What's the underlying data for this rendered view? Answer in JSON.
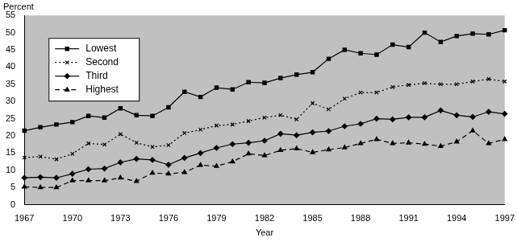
{
  "chart_data": {
    "type": "line",
    "x_label": "Year",
    "y_label": "Percent",
    "x": [
      1967,
      1968,
      1969,
      1970,
      1971,
      1972,
      1973,
      1974,
      1975,
      1976,
      1977,
      1978,
      1979,
      1980,
      1981,
      1982,
      1983,
      1984,
      1985,
      1986,
      1987,
      1988,
      1989,
      1990,
      1991,
      1992,
      1993,
      1994,
      1995,
      1996,
      1997
    ],
    "xlim": [
      1967,
      1997
    ],
    "xticks": [
      1967,
      1970,
      1973,
      1976,
      1979,
      1982,
      1985,
      1988,
      1991,
      1994,
      1997
    ],
    "ylim": [
      0,
      55
    ],
    "yticks": [
      0,
      5,
      10,
      15,
      20,
      25,
      30,
      35,
      40,
      45,
      50,
      55
    ],
    "grid": false,
    "legend": "upper left",
    "series": [
      {
        "name": "Lowest",
        "color": "#000000",
        "marker": "square",
        "line_style": "solid",
        "values": [
          21.5,
          22.5,
          23.3,
          24,
          25.8,
          25.3,
          28,
          26,
          25.8,
          28.3,
          32.8,
          31.3,
          34,
          33.5,
          35.6,
          35.4,
          36.8,
          37.8,
          38.5,
          42.4,
          45,
          44,
          43.6,
          46.5,
          45.8,
          50,
          47.3,
          49,
          49.7,
          49.5,
          50.7
        ]
      },
      {
        "name": "Second",
        "color": "#000000",
        "marker": "x",
        "line_style": "dotted",
        "values": [
          13.7,
          14,
          13.2,
          14.8,
          17.8,
          17.5,
          20.5,
          18,
          16.8,
          17.3,
          20.8,
          21.8,
          23,
          23.3,
          24.3,
          25.3,
          26,
          24.8,
          29.5,
          27.7,
          30.8,
          32.6,
          32.6,
          34.2,
          34.8,
          35.3,
          35,
          35,
          35.8,
          36.5,
          35.8
        ]
      },
      {
        "name": "Third",
        "color": "#000000",
        "marker": "diamond",
        "line_style": "solid",
        "values": [
          7.8,
          8,
          7.8,
          9,
          10.3,
          10.5,
          12.3,
          13.3,
          13,
          11.6,
          13.6,
          15,
          16.5,
          17.6,
          18,
          18.6,
          20.6,
          20.2,
          21,
          21.4,
          22.8,
          23.5,
          25,
          24.8,
          25.4,
          25.4,
          27.4,
          26,
          25.5,
          27,
          26.4
        ]
      },
      {
        "name": "Highest",
        "color": "#000000",
        "marker": "triangle",
        "line_style": "dashed",
        "values": [
          5.2,
          5,
          5,
          7,
          7,
          7,
          7.8,
          6.8,
          9.2,
          9,
          9.4,
          11.5,
          11.2,
          12.5,
          14.8,
          14.3,
          15.8,
          16.3,
          15.2,
          16,
          16.6,
          17.8,
          19,
          17.8,
          18,
          17.6,
          17,
          18.3,
          21.5,
          17.8,
          19
        ]
      }
    ]
  }
}
